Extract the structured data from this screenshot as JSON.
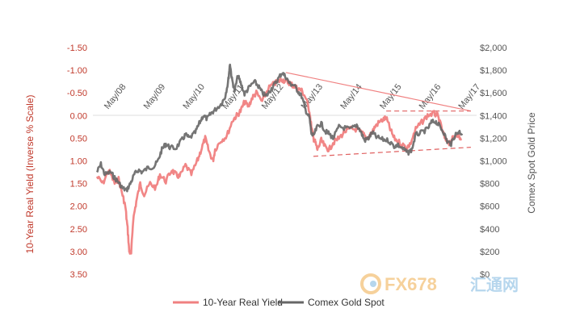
{
  "chart_data": {
    "type": "line",
    "ylabel_left": "10-Year Real Yield (Inverse % Scale)",
    "ylabel_right": "Comex Spot Gold Price",
    "left_axis": {
      "ticks": [
        "-1.50",
        "-1.00",
        "-0.50",
        "0.00",
        "0.50",
        "1.00",
        "1.50",
        "2.00",
        "2.50",
        "3.00",
        "3.50"
      ],
      "range": [
        -1.5,
        3.5
      ],
      "inverted": true
    },
    "right_axis": {
      "ticks": [
        "$2,000",
        "$1,800",
        "$1,600",
        "$1,400",
        "$1,200",
        "$1,000",
        "$800",
        "$600",
        "$400",
        "$200",
        "$0"
      ],
      "range": [
        0,
        2000
      ]
    },
    "x_ticks": [
      "May/08",
      "May/09",
      "May/10",
      "May/11",
      "May/12",
      "May/13",
      "May/14",
      "May/15",
      "May/16",
      "May/17"
    ],
    "x_range": [
      2008.0,
      2017.4
    ],
    "series": [
      {
        "name": "10-Year Real Yield",
        "color": "#f08080",
        "axis": "left",
        "points": [
          [
            2008.0,
            1.35
          ],
          [
            2008.15,
            1.5
          ],
          [
            2008.3,
            1.2
          ],
          [
            2008.45,
            1.5
          ],
          [
            2008.55,
            1.4
          ],
          [
            2008.65,
            1.75
          ],
          [
            2008.72,
            2.0
          ],
          [
            2008.78,
            2.5
          ],
          [
            2008.82,
            3.0
          ],
          [
            2008.87,
            3.05
          ],
          [
            2008.92,
            2.3
          ],
          [
            2009.0,
            1.9
          ],
          [
            2009.1,
            1.5
          ],
          [
            2009.2,
            1.75
          ],
          [
            2009.35,
            1.5
          ],
          [
            2009.5,
            1.6
          ],
          [
            2009.6,
            1.3
          ],
          [
            2009.75,
            1.45
          ],
          [
            2009.9,
            1.2
          ],
          [
            2010.0,
            1.3
          ],
          [
            2010.1,
            1.35
          ],
          [
            2010.25,
            1.1
          ],
          [
            2010.4,
            1.3
          ],
          [
            2010.55,
            1.0
          ],
          [
            2010.65,
            0.75
          ],
          [
            2010.75,
            0.5
          ],
          [
            2010.85,
            0.8
          ],
          [
            2010.95,
            1.0
          ],
          [
            2011.0,
            0.75
          ],
          [
            2011.15,
            0.55
          ],
          [
            2011.3,
            0.45
          ],
          [
            2011.45,
            0.1
          ],
          [
            2011.55,
            0.0
          ],
          [
            2011.65,
            -0.1
          ],
          [
            2011.75,
            -0.3
          ],
          [
            2011.85,
            -0.2
          ],
          [
            2011.95,
            -0.4
          ],
          [
            2012.05,
            -0.5
          ],
          [
            2012.2,
            -0.3
          ],
          [
            2012.35,
            -0.6
          ],
          [
            2012.5,
            -0.7
          ],
          [
            2012.6,
            -0.75
          ],
          [
            2012.7,
            -0.8
          ],
          [
            2012.8,
            -0.75
          ],
          [
            2012.9,
            -0.72
          ],
          [
            2013.0,
            -0.65
          ],
          [
            2013.1,
            -0.6
          ],
          [
            2013.2,
            -0.55
          ],
          [
            2013.3,
            -0.4
          ],
          [
            2013.4,
            -0.1
          ],
          [
            2013.45,
            0.25
          ],
          [
            2013.5,
            0.5
          ],
          [
            2013.55,
            0.6
          ],
          [
            2013.6,
            0.75
          ],
          [
            2013.7,
            0.55
          ],
          [
            2013.8,
            0.7
          ],
          [
            2013.9,
            0.75
          ],
          [
            2014.0,
            0.6
          ],
          [
            2014.15,
            0.5
          ],
          [
            2014.3,
            0.35
          ],
          [
            2014.45,
            0.3
          ],
          [
            2014.6,
            0.3
          ],
          [
            2014.75,
            0.4
          ],
          [
            2014.85,
            0.5
          ],
          [
            2015.0,
            0.35
          ],
          [
            2015.1,
            0.2
          ],
          [
            2015.25,
            0.1
          ],
          [
            2015.35,
            0.05
          ],
          [
            2015.45,
            0.3
          ],
          [
            2015.55,
            0.5
          ],
          [
            2015.7,
            0.6
          ],
          [
            2015.85,
            0.7
          ],
          [
            2015.95,
            0.65
          ],
          [
            2016.1,
            0.3
          ],
          [
            2016.25,
            0.15
          ],
          [
            2016.4,
            0.0
          ],
          [
            2016.55,
            -0.05
          ],
          [
            2016.65,
            0.0
          ],
          [
            2016.75,
            0.25
          ],
          [
            2016.85,
            0.55
          ],
          [
            2016.95,
            0.6
          ],
          [
            2017.05,
            0.5
          ],
          [
            2017.15,
            0.4
          ],
          [
            2017.25,
            0.55
          ]
        ]
      },
      {
        "name": "Comex Gold  Spot",
        "color": "#666666",
        "axis": "right",
        "points": [
          [
            2008.0,
            900
          ],
          [
            2008.1,
            970
          ],
          [
            2008.2,
            880
          ],
          [
            2008.35,
            900
          ],
          [
            2008.45,
            850
          ],
          [
            2008.55,
            810
          ],
          [
            2008.65,
            760
          ],
          [
            2008.75,
            740
          ],
          [
            2008.85,
            800
          ],
          [
            2008.95,
            880
          ],
          [
            2009.05,
            920
          ],
          [
            2009.15,
            900
          ],
          [
            2009.3,
            940
          ],
          [
            2009.45,
            950
          ],
          [
            2009.55,
            1000
          ],
          [
            2009.65,
            1100
          ],
          [
            2009.75,
            1150
          ],
          [
            2009.85,
            1120
          ],
          [
            2010.0,
            1110
          ],
          [
            2010.15,
            1180
          ],
          [
            2010.25,
            1230
          ],
          [
            2010.35,
            1200
          ],
          [
            2010.5,
            1250
          ],
          [
            2010.6,
            1330
          ],
          [
            2010.7,
            1400
          ],
          [
            2010.8,
            1370
          ],
          [
            2010.9,
            1420
          ],
          [
            2011.0,
            1450
          ],
          [
            2011.15,
            1500
          ],
          [
            2011.25,
            1560
          ],
          [
            2011.33,
            1690
          ],
          [
            2011.38,
            1860
          ],
          [
            2011.43,
            1720
          ],
          [
            2011.5,
            1620
          ],
          [
            2011.58,
            1750
          ],
          [
            2011.65,
            1690
          ],
          [
            2011.75,
            1590
          ],
          [
            2011.85,
            1640
          ],
          [
            2012.0,
            1700
          ],
          [
            2012.1,
            1660
          ],
          [
            2012.2,
            1600
          ],
          [
            2012.3,
            1570
          ],
          [
            2012.4,
            1620
          ],
          [
            2012.5,
            1670
          ],
          [
            2012.6,
            1720
          ],
          [
            2012.7,
            1780
          ],
          [
            2012.8,
            1740
          ],
          [
            2012.9,
            1680
          ],
          [
            2013.0,
            1670
          ],
          [
            2013.1,
            1620
          ],
          [
            2013.2,
            1570
          ],
          [
            2013.3,
            1450
          ],
          [
            2013.4,
            1380
          ],
          [
            2013.45,
            1240
          ],
          [
            2013.5,
            1220
          ],
          [
            2013.6,
            1300
          ],
          [
            2013.7,
            1330
          ],
          [
            2013.8,
            1260
          ],
          [
            2013.9,
            1240
          ],
          [
            2014.0,
            1200
          ],
          [
            2014.15,
            1300
          ],
          [
            2014.3,
            1290
          ],
          [
            2014.45,
            1280
          ],
          [
            2014.6,
            1320
          ],
          [
            2014.7,
            1260
          ],
          [
            2014.8,
            1180
          ],
          [
            2014.9,
            1200
          ],
          [
            2015.0,
            1250
          ],
          [
            2015.1,
            1210
          ],
          [
            2015.25,
            1190
          ],
          [
            2015.4,
            1180
          ],
          [
            2015.55,
            1130
          ],
          [
            2015.65,
            1140
          ],
          [
            2015.8,
            1100
          ],
          [
            2015.9,
            1070
          ],
          [
            2016.0,
            1100
          ],
          [
            2016.1,
            1230
          ],
          [
            2016.25,
            1250
          ],
          [
            2016.4,
            1280
          ],
          [
            2016.5,
            1340
          ],
          [
            2016.6,
            1350
          ],
          [
            2016.7,
            1310
          ],
          [
            2016.8,
            1260
          ],
          [
            2016.9,
            1170
          ],
          [
            2017.0,
            1150
          ],
          [
            2017.1,
            1230
          ],
          [
            2017.2,
            1260
          ],
          [
            2017.28,
            1240
          ]
        ]
      }
    ],
    "trendlines": [
      {
        "style": "solid",
        "color": "#f08080",
        "points": [
          [
            2012.8,
            -0.95
          ],
          [
            2017.5,
            -0.1
          ]
        ]
      },
      {
        "style": "dashed",
        "color": "#e06060",
        "points": [
          [
            2013.5,
            0.9
          ],
          [
            2017.5,
            0.7
          ]
        ]
      },
      {
        "style": "dashed",
        "color": "#e06060",
        "points": [
          [
            2015.35,
            -0.1
          ],
          [
            2017.5,
            -0.1
          ]
        ]
      }
    ],
    "legend_position": "bottom",
    "grid": false
  },
  "watermark": {
    "text": "FX678",
    "cn_text": "汇通网"
  }
}
